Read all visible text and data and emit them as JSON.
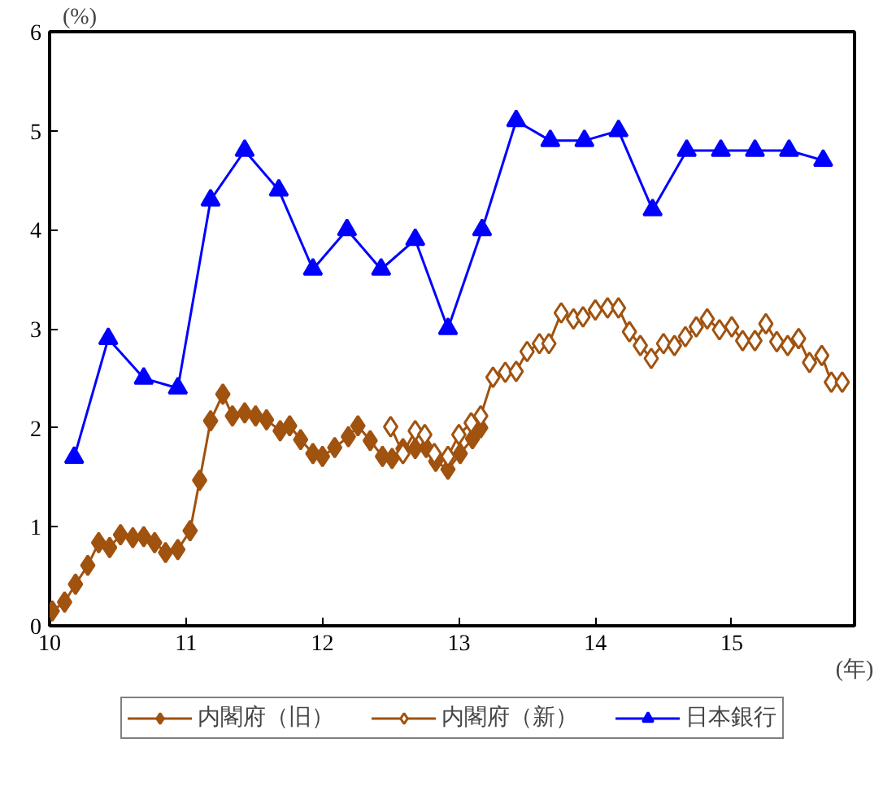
{
  "chart_data": {
    "type": "line",
    "xlabel": "(年)",
    "ylabel": "(%)",
    "xlim": [
      10,
      15.9
    ],
    "xticks": [
      10,
      11,
      12,
      13,
      14,
      15
    ],
    "ylim": [
      0,
      6
    ],
    "yticks": [
      0,
      1,
      2,
      3,
      4,
      5,
      6
    ],
    "grid": false,
    "legend": "bottom",
    "line_style": "solid",
    "series": [
      {
        "name": "内閣府（旧）",
        "color": "#a0520f",
        "marker": "diamond",
        "x": [
          10.02,
          10.11,
          10.19,
          10.28,
          10.36,
          10.44,
          10.52,
          10.61,
          10.69,
          10.77,
          10.85,
          10.94,
          11.03,
          11.1,
          11.18,
          11.27,
          11.34,
          11.43,
          11.51,
          11.59,
          11.69,
          11.76,
          11.84,
          11.93,
          12.0,
          12.09,
          12.19,
          12.26,
          12.35,
          12.44,
          12.51,
          12.59,
          12.68,
          12.76,
          12.83,
          12.92,
          13.01,
          13.1,
          13.16
        ],
        "values": [
          0.15,
          0.24,
          0.42,
          0.61,
          0.84,
          0.79,
          0.92,
          0.89,
          0.9,
          0.84,
          0.74,
          0.77,
          0.96,
          1.47,
          2.07,
          2.34,
          2.12,
          2.15,
          2.12,
          2.08,
          1.97,
          2.02,
          1.88,
          1.74,
          1.71,
          1.8,
          1.91,
          2.02,
          1.87,
          1.71,
          1.69,
          1.79,
          1.79,
          1.8,
          1.66,
          1.58,
          1.74,
          1.89,
          2.0
        ]
      },
      {
        "name": "内閣府（新）",
        "color": "#a0520f",
        "marker": "diamond_open",
        "x": [
          12.5,
          12.59,
          12.68,
          12.75,
          12.82,
          12.92,
          13.0,
          13.09,
          13.16,
          13.25,
          13.34,
          13.42,
          13.5,
          13.59,
          13.66,
          13.75,
          13.84,
          13.91,
          14.0,
          14.09,
          14.17,
          14.25,
          14.33,
          14.41,
          14.5,
          14.58,
          14.66,
          14.74,
          14.82,
          14.91,
          15.0,
          15.08,
          15.17,
          15.25,
          15.33,
          15.41,
          15.49,
          15.57,
          15.66,
          15.73,
          15.81
        ],
        "values": [
          2.01,
          1.74,
          1.97,
          1.93,
          1.74,
          1.71,
          1.93,
          2.05,
          2.12,
          2.51,
          2.56,
          2.57,
          2.77,
          2.85,
          2.85,
          3.16,
          3.1,
          3.12,
          3.19,
          3.21,
          3.21,
          2.97,
          2.83,
          2.7,
          2.85,
          2.83,
          2.92,
          3.02,
          3.1,
          2.99,
          3.02,
          2.88,
          2.88,
          3.05,
          2.87,
          2.83,
          2.9,
          2.66,
          2.73,
          2.46,
          2.46
        ]
      },
      {
        "name": "日本銀行",
        "color": "#0000ff",
        "marker": "triangle",
        "x": [
          10.18,
          10.43,
          10.69,
          10.94,
          11.18,
          11.43,
          11.68,
          11.93,
          12.18,
          12.43,
          12.68,
          12.92,
          13.17,
          13.42,
          13.67,
          13.92,
          14.17,
          14.42,
          14.67,
          14.92,
          15.17,
          15.42,
          15.67
        ],
        "values": [
          1.7,
          2.9,
          2.5,
          2.4,
          4.3,
          4.8,
          4.4,
          3.6,
          4.0,
          3.6,
          3.9,
          3.0,
          4.0,
          5.1,
          4.9,
          4.9,
          5.0,
          4.2,
          4.8,
          4.8,
          4.8,
          4.8,
          4.7
        ]
      }
    ]
  }
}
